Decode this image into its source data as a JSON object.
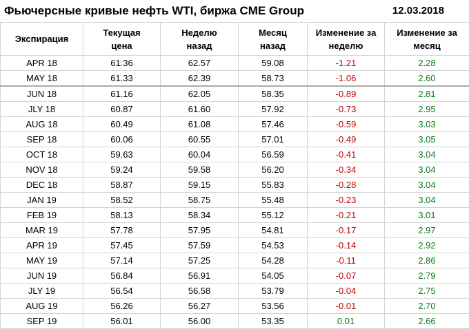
{
  "header": {
    "title": "Фьючерсные кривые нефть WTI, биржа CME Group",
    "date": "12.03.2018"
  },
  "table": {
    "columns": [
      "Экспирация",
      "Текущая\nцена",
      "Неделю\nназад",
      "Месяц\nназад",
      "Изменение за\nнеделю",
      "Изменение за\nмесяц"
    ],
    "rows": [
      [
        "APR 18",
        "61.36",
        "62.57",
        "59.08",
        "-1.21",
        "2.28"
      ],
      [
        "MAY 18",
        "61.33",
        "62.39",
        "58.73",
        "-1.06",
        "2.60"
      ],
      [
        "JUN 18",
        "61.16",
        "62.05",
        "58.35",
        "-0.89",
        "2.81"
      ],
      [
        "JLY 18",
        "60.87",
        "61.60",
        "57.92",
        "-0.73",
        "2.95"
      ],
      [
        "AUG 18",
        "60.49",
        "61.08",
        "57.46",
        "-0.59",
        "3.03"
      ],
      [
        "SEP 18",
        "60.06",
        "60.55",
        "57.01",
        "-0.49",
        "3.05"
      ],
      [
        "OCT 18",
        "59.63",
        "60.04",
        "56.59",
        "-0.41",
        "3.04"
      ],
      [
        "NOV 18",
        "59.24",
        "59.58",
        "56.20",
        "-0.34",
        "3.04"
      ],
      [
        "DEC 18",
        "58.87",
        "59.15",
        "55.83",
        "-0.28",
        "3.04"
      ],
      [
        "JAN 19",
        "58.52",
        "58.75",
        "55.48",
        "-0.23",
        "3.04"
      ],
      [
        "FEB 19",
        "58.13",
        "58.34",
        "55.12",
        "-0.21",
        "3.01"
      ],
      [
        "MAR 19",
        "57.78",
        "57.95",
        "54.81",
        "-0.17",
        "2.97"
      ],
      [
        "APR 19",
        "57.45",
        "57.59",
        "54.53",
        "-0.14",
        "2.92"
      ],
      [
        "MAY 19",
        "57.14",
        "57.25",
        "54.28",
        "-0.11",
        "2.86"
      ],
      [
        "JUN 19",
        "56.84",
        "56.91",
        "54.05",
        "-0.07",
        "2.79"
      ],
      [
        "JLY 19",
        "56.54",
        "56.58",
        "53.79",
        "-0.04",
        "2.75"
      ],
      [
        "AUG 19",
        "56.26",
        "56.27",
        "53.56",
        "-0.01",
        "2.70"
      ],
      [
        "SEP 19",
        "56.01",
        "56.00",
        "53.35",
        "0.01",
        "2.66"
      ]
    ]
  }
}
